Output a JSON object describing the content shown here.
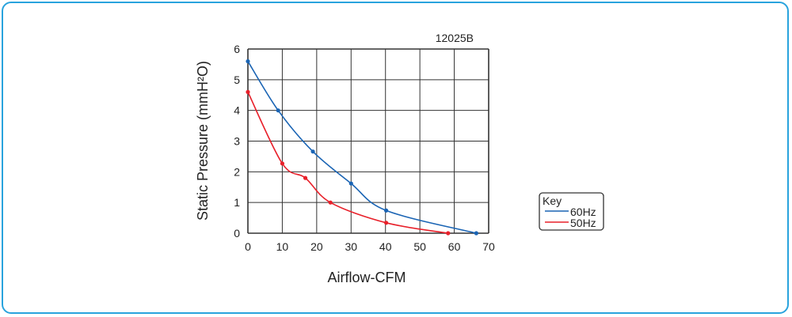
{
  "chart_data": {
    "type": "line",
    "title": "12025B",
    "xlabel": "Airflow-CFM",
    "ylabel": "Static Pressure (mmH²O)",
    "xlim": [
      0,
      70
    ],
    "ylim": [
      0,
      6
    ],
    "xticks": [
      "0",
      "10",
      "20",
      "30",
      "40",
      "50",
      "60",
      "70"
    ],
    "yticks": [
      "0",
      "1",
      "2",
      "3",
      "4",
      "5",
      "6"
    ],
    "grid": true,
    "legend": {
      "title": "Key",
      "placement": "right"
    },
    "series": [
      {
        "name": "60Hz",
        "color": "#1a64b4",
        "x": [
          0,
          8.8,
          18.9,
          30,
          40.2,
          66.4
        ],
        "y": [
          5.6,
          4.0,
          2.66,
          1.62,
          0.74,
          0
        ]
      },
      {
        "name": "50Hz",
        "color": "#e8202a",
        "x": [
          0,
          10,
          16.7,
          24,
          40.2,
          58.2
        ],
        "y": [
          4.6,
          2.27,
          1.8,
          1.0,
          0.34,
          0
        ]
      }
    ]
  }
}
